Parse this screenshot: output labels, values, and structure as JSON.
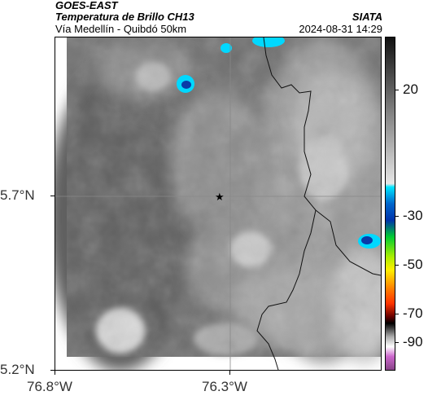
{
  "header": {
    "satellite": "GOES-EAST",
    "product": "Temperatura de Brillo CH13",
    "route": "Vía Medellín - Quibdó 50km",
    "source": "SIATA",
    "datetime": "2024-08-31 14:29"
  },
  "map": {
    "lat_ticks": [
      "5.7°N",
      "5.2°N"
    ],
    "lon_ticks": [
      "76.8°W",
      "76.3°W"
    ],
    "marker": "star"
  },
  "colorbar": {
    "labels": [
      "20",
      "-30",
      "-50",
      "-70",
      "-90"
    ],
    "colors": [
      "#111111",
      "#7f7f7f",
      "#e6e6e6",
      "#00e5ff",
      "#0033aa",
      "#00cc33",
      "#ffee00",
      "#ff3300",
      "#000000",
      "#cc66cc"
    ]
  }
}
